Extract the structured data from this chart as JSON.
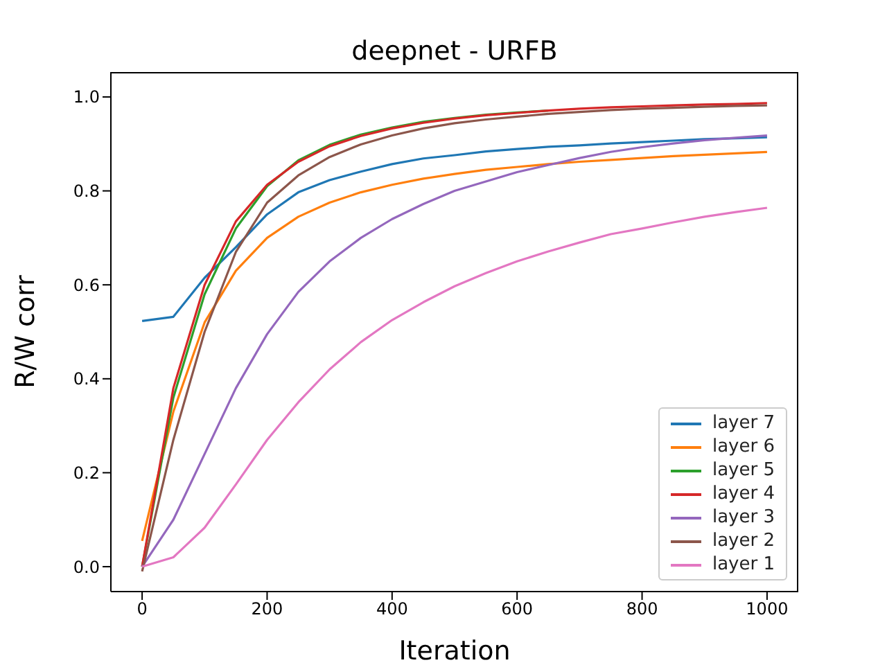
{
  "chart_data": {
    "type": "line",
    "title": "deepnet - URFB",
    "xlabel": "Iteration",
    "ylabel": "R/W corr",
    "x": [
      0,
      50,
      100,
      150,
      200,
      250,
      300,
      350,
      400,
      450,
      500,
      550,
      600,
      650,
      700,
      750,
      800,
      850,
      900,
      950,
      1000
    ],
    "series": [
      {
        "name": "layer 7",
        "color": "#1f77b4",
        "values": [
          0.523,
          0.532,
          0.615,
          0.68,
          0.75,
          0.797,
          0.823,
          0.841,
          0.857,
          0.869,
          0.876,
          0.884,
          0.889,
          0.894,
          0.897,
          0.901,
          0.904,
          0.907,
          0.91,
          0.912,
          0.914
        ]
      },
      {
        "name": "layer 6",
        "color": "#ff7f0e",
        "values": [
          0.055,
          0.33,
          0.52,
          0.63,
          0.7,
          0.745,
          0.775,
          0.797,
          0.813,
          0.826,
          0.836,
          0.845,
          0.851,
          0.857,
          0.862,
          0.866,
          0.87,
          0.874,
          0.877,
          0.88,
          0.883
        ]
      },
      {
        "name": "layer 5",
        "color": "#2ca02c",
        "values": [
          0.0,
          0.36,
          0.58,
          0.72,
          0.81,
          0.865,
          0.898,
          0.92,
          0.935,
          0.947,
          0.955,
          0.962,
          0.967,
          0.971,
          null,
          null,
          null,
          null,
          null,
          null,
          null
        ]
      },
      {
        "name": "layer 4",
        "color": "#d62728",
        "values": [
          0.0,
          0.38,
          0.6,
          0.735,
          0.813,
          0.862,
          0.895,
          0.917,
          0.933,
          0.945,
          0.954,
          0.961,
          0.966,
          0.971,
          0.975,
          0.978,
          0.98,
          0.982,
          0.984,
          0.985,
          0.987
        ]
      },
      {
        "name": "layer 3",
        "color": "#9467bd",
        "values": [
          0.0,
          0.1,
          0.24,
          0.38,
          0.495,
          0.585,
          0.65,
          0.7,
          0.74,
          0.772,
          0.8,
          0.82,
          0.84,
          0.855,
          0.87,
          0.883,
          0.893,
          0.901,
          0.908,
          0.913,
          0.918
        ]
      },
      {
        "name": "layer 2",
        "color": "#8c564b",
        "values": [
          -0.01,
          0.27,
          0.5,
          0.67,
          0.775,
          0.833,
          0.872,
          0.899,
          0.918,
          0.933,
          0.944,
          0.952,
          0.958,
          0.964,
          0.968,
          0.972,
          0.975,
          0.977,
          0.979,
          0.981,
          0.982
        ]
      },
      {
        "name": "layer 1",
        "color": "#e377c2",
        "values": [
          0.0,
          0.02,
          0.083,
          0.175,
          0.27,
          0.35,
          0.42,
          0.478,
          0.525,
          0.563,
          0.597,
          0.625,
          0.65,
          0.671,
          0.69,
          0.708,
          0.72,
          0.733,
          0.745,
          0.755,
          0.764
        ]
      }
    ],
    "xlim": [
      -50,
      1050
    ],
    "xticks": [
      0,
      200,
      400,
      600,
      800,
      1000
    ],
    "ylim": [
      -0.053,
      1.053
    ],
    "yticks": [
      {
        "value": 0,
        "label": "0.0"
      },
      0.2,
      0.4,
      0.6,
      0.8,
      {
        "value": 1,
        "label": "1.0"
      }
    ],
    "legend": "bottom right"
  }
}
